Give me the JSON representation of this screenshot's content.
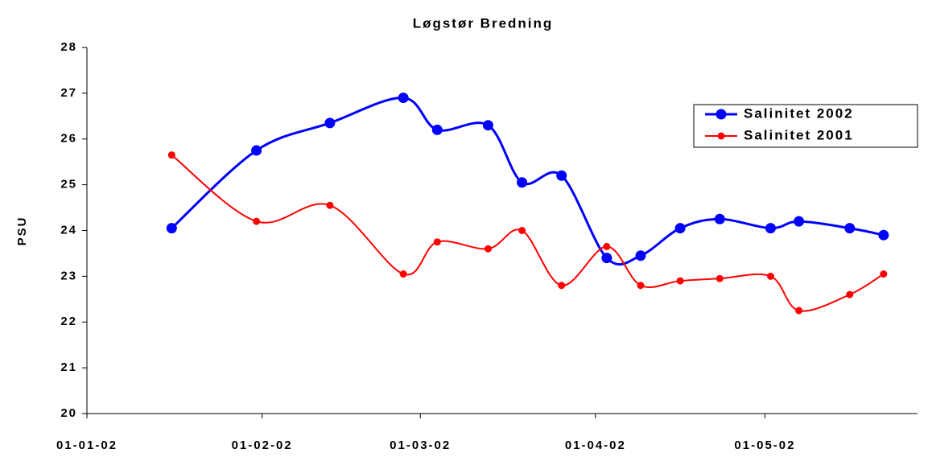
{
  "chart_data": {
    "type": "line",
    "title": "Løgstør Bredning",
    "y_label": "PSU",
    "x": [
      "2002-01-16",
      "2002-01-31",
      "2002-02-13",
      "2002-02-26",
      "2002-03-04",
      "2002-03-13",
      "2002-03-19",
      "2002-03-26",
      "2002-04-03",
      "2002-04-09",
      "2002-04-16",
      "2002-04-23",
      "2002-05-02",
      "2002-05-07",
      "2002-05-16",
      "2002-05-22"
    ],
    "series": [
      {
        "name": "Salinitet 2002",
        "color": "#0000ff",
        "values": [
          24.05,
          25.75,
          26.35,
          26.9,
          26.2,
          26.3,
          25.05,
          25.2,
          23.4,
          23.45,
          24.05,
          24.25,
          24.05,
          24.2,
          24.05,
          23.9
        ]
      },
      {
        "name": "Salinitet 2001",
        "color": "#ff0000",
        "values": [
          25.65,
          24.2,
          24.55,
          23.05,
          23.75,
          23.6,
          24.0,
          22.8,
          23.65,
          22.8,
          22.9,
          22.95,
          23.0,
          22.25,
          22.6,
          23.05
        ]
      }
    ],
    "xlim": [
      "2002-01-01",
      "2002-05-28"
    ],
    "xticks": [
      {
        "value": "2002-01-01",
        "label": "01-01-02"
      },
      {
        "value": "2002-02-01",
        "label": "01-02-02"
      },
      {
        "value": "2002-03-01",
        "label": "01-03-02"
      },
      {
        "value": "2002-04-01",
        "label": "01-04-02"
      },
      {
        "value": "2002-05-01",
        "label": "01-05-02"
      }
    ],
    "ylim": [
      20,
      28
    ],
    "yticks": [
      20,
      21,
      22,
      23,
      24,
      25,
      26,
      27,
      28
    ],
    "legend": "upper right"
  }
}
